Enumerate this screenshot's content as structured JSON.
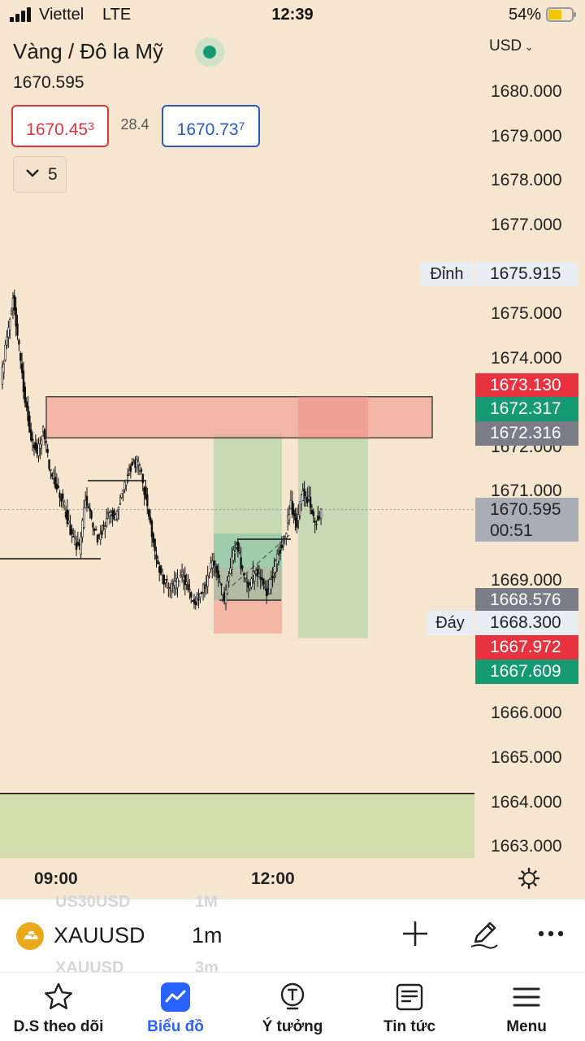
{
  "status_bar": {
    "carrier": "Viettel",
    "network": "LTE",
    "time": "12:39",
    "battery_percent": "54%"
  },
  "header": {
    "title": "Vàng / Đô la Mỹ",
    "last_price": "1670.595",
    "bid_main": "1670.45",
    "bid_small": "3",
    "spread": "28.4",
    "ask_main": "1670.73",
    "ask_small": "7",
    "indicator_count": "5",
    "currency": "USD",
    "market_status_color": "#169a72"
  },
  "chart_data": {
    "type": "candlestick",
    "symbol": "XAUUSD",
    "interval": "1m",
    "ylim": [
      1662.7,
      1680.9
    ],
    "y_ticks": [
      "1680.000",
      "1679.000",
      "1678.000",
      "1677.000",
      "1675.000",
      "1674.000",
      "1672.000",
      "1671.000",
      "1669.000",
      "1666.000",
      "1665.000",
      "1664.000",
      "1663.000"
    ],
    "x_ticks": [
      "09:00",
      "12:00"
    ],
    "price_close_path": [
      1673.5,
      1674.4,
      1675.4,
      1674.2,
      1673.0,
      1672.2,
      1671.9,
      1672.4,
      1671.6,
      1671.2,
      1670.9,
      1670.4,
      1669.9,
      1669.7,
      1670.8,
      1670.4,
      1669.9,
      1670.2,
      1670.6,
      1670.4,
      1670.9,
      1671.4,
      1671.7,
      1671.5,
      1670.9,
      1670.0,
      1669.4,
      1669.0,
      1668.8,
      1668.9,
      1669.1,
      1668.8,
      1668.5,
      1668.7,
      1668.9,
      1669.4,
      1669.0,
      1668.6,
      1669.3,
      1669.9,
      1669.2,
      1668.8,
      1669.2,
      1669.0,
      1668.7,
      1669.1,
      1669.6,
      1670.0,
      1670.7,
      1670.3,
      1671.0,
      1670.8,
      1670.3,
      1670.5
    ],
    "last_price": 1670.595,
    "countdown": "00:51",
    "axis_tags": [
      {
        "value": "1673.130",
        "color": "#e6333f"
      },
      {
        "value": "1672.317",
        "color": "#169a72"
      },
      {
        "value": "1672.316",
        "color": "#7a7d87"
      },
      {
        "value": "1668.576",
        "color": "#7a7d87"
      },
      {
        "value": "1667.972",
        "color": "#e6333f"
      },
      {
        "value": "1667.609",
        "color": "#169a72"
      }
    ],
    "high_label": "Đỉnh",
    "high_value": "1675.915",
    "low_label": "Đáy",
    "low_value": "1668.300",
    "zones": [
      {
        "kind": "resistance",
        "from": 1672.3,
        "to": 1673.1,
        "color": "#f2a89b"
      },
      {
        "kind": "support",
        "from": 1662.7,
        "to": 1664.2,
        "color": "#d3dcad"
      }
    ],
    "positions": [
      {
        "kind": "long",
        "entry": 1669.3,
        "target": 1672.3,
        "stop": 1667.8
      },
      {
        "kind": "long",
        "entry": 1672.3,
        "target": 1667.7
      }
    ]
  },
  "symbol_bar": {
    "symbol": "XAUUSD",
    "interval": "1m",
    "ghost_top_symbol": "US30USD",
    "ghost_top_interval": "1M",
    "ghost_bottom_symbol": "XAUUSD",
    "ghost_bottom_interval": "3m"
  },
  "bottom_nav": [
    {
      "label": "D.S theo dõi",
      "icon": "star-icon"
    },
    {
      "label": "Biểu đồ",
      "icon": "chart-icon",
      "active": true
    },
    {
      "label": "Ý tưởng",
      "icon": "idea-icon"
    },
    {
      "label": "Tin tức",
      "icon": "news-icon"
    },
    {
      "label": "Menu",
      "icon": "menu-icon"
    }
  ]
}
